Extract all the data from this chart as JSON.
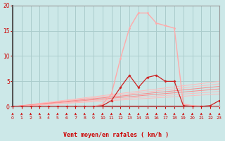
{
  "background_color": "#cce8e8",
  "grid_color": "#aacccc",
  "xlabel": "Vent moyen/en rafales ( km/h )",
  "xlim": [
    0,
    23
  ],
  "ylim": [
    0,
    20
  ],
  "yticks": [
    0,
    5,
    10,
    15,
    20
  ],
  "xticks": [
    0,
    1,
    2,
    3,
    4,
    5,
    6,
    7,
    8,
    9,
    10,
    11,
    12,
    13,
    14,
    15,
    16,
    17,
    18,
    19,
    20,
    21,
    22,
    23
  ],
  "rafales_x": [
    0,
    1,
    2,
    3,
    4,
    5,
    6,
    7,
    8,
    9,
    10,
    11,
    12,
    13,
    14,
    15,
    16,
    17,
    18,
    19,
    20,
    21,
    22,
    23
  ],
  "rafales_y": [
    0,
    0,
    0,
    0,
    0,
    0,
    0,
    0,
    0,
    0,
    0.5,
    2.5,
    9.5,
    15.5,
    18.5,
    18.5,
    16.5,
    16.0,
    15.5,
    0.5,
    0.2,
    0.1,
    0.05,
    0.0
  ],
  "moyen_x": [
    0,
    1,
    2,
    3,
    4,
    5,
    6,
    7,
    8,
    9,
    10,
    11,
    12,
    13,
    14,
    15,
    16,
    17,
    18,
    19,
    20,
    21,
    22,
    23
  ],
  "moyen_y": [
    0,
    0,
    0,
    0,
    0,
    0,
    0,
    0,
    0,
    0,
    0.2,
    1.2,
    3.8,
    6.2,
    3.8,
    5.8,
    6.2,
    5.0,
    5.0,
    0.2,
    0.05,
    0.05,
    0.2,
    1.2
  ],
  "diag_slopes": [
    5.0,
    4.5,
    4.0,
    3.5,
    3.0,
    2.5
  ],
  "color_rafales": "#ffaaaa",
  "color_moyen": "#cc2222",
  "color_base": "#cc0000",
  "color_diag_light": "#ffbbbb",
  "color_diag_medium": "#ff8888",
  "xlabel_color": "#cc0000",
  "tick_color": "#cc0000",
  "spine_color": "#999999",
  "arrow_color": "#cc0000"
}
